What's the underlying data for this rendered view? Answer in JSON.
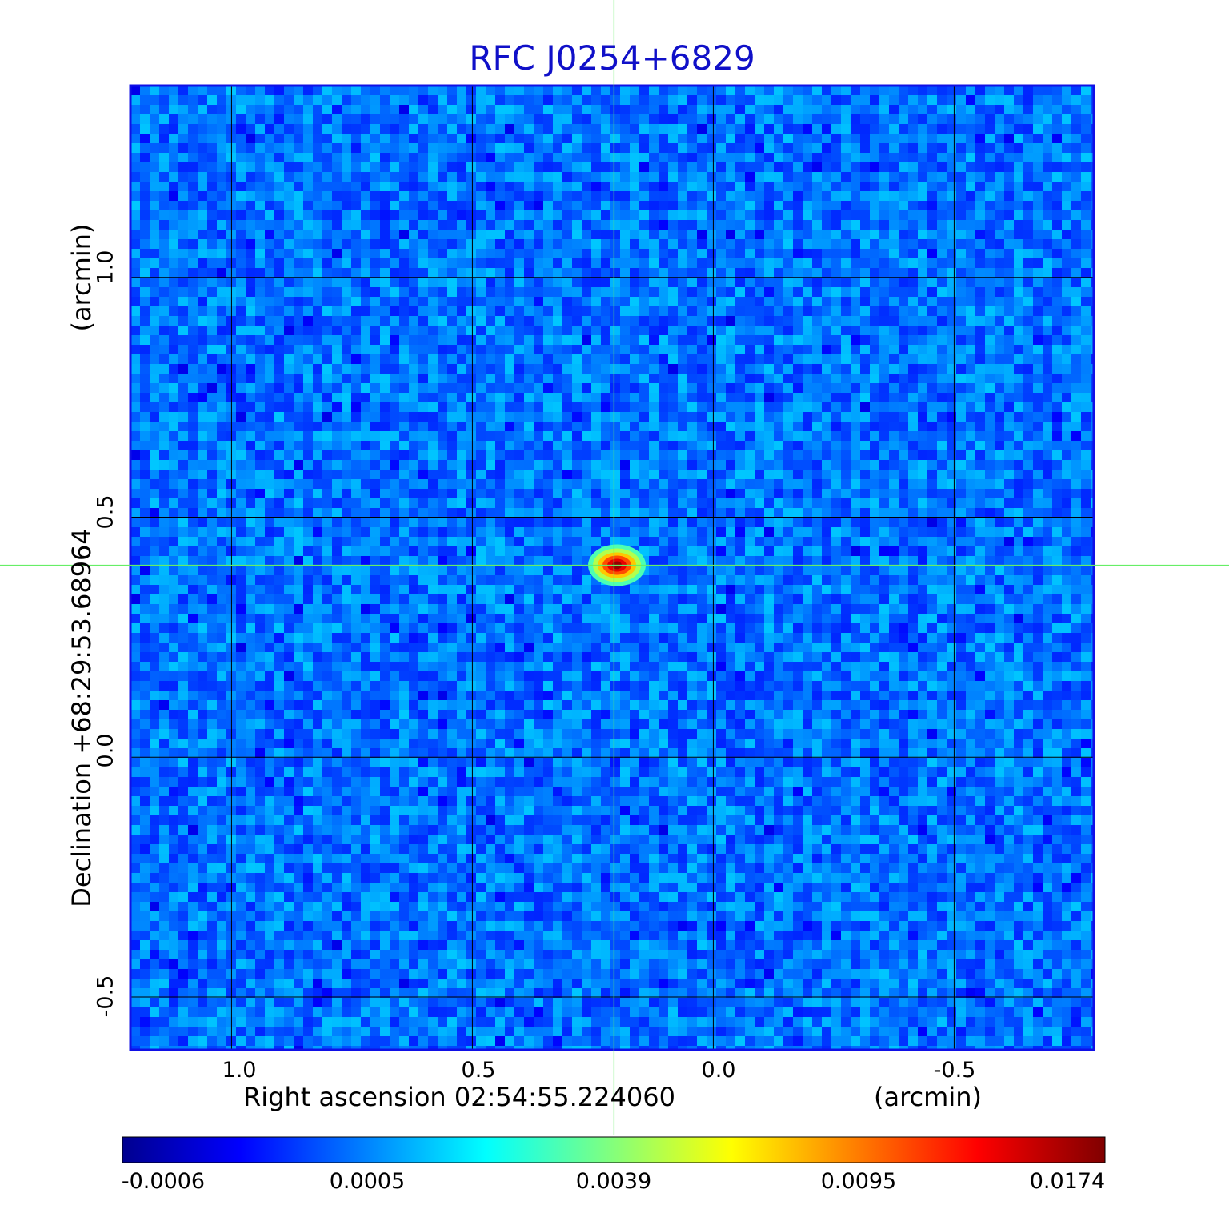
{
  "chart_data": {
    "type": "heatmap",
    "title": "RFC J0254+6829",
    "xlabel": "Right ascension  02:54:55.224060",
    "xunit": "(arcmin)",
    "ylabel": "Declination  +68:29:53.68964",
    "yunit": "(arcmin)",
    "x_ticks": [
      "1.0",
      "0.5",
      "0.0",
      "-0.5"
    ],
    "x_tick_values": [
      1.0,
      0.5,
      0.0,
      -0.5
    ],
    "y_ticks": [
      "1.0",
      "0.5",
      "0.0",
      "-0.5"
    ],
    "y_tick_values": [
      1.0,
      0.5,
      0.0,
      -0.5
    ],
    "xlim": [
      1.21,
      -0.79
    ],
    "ylim": [
      -0.61,
      1.4
    ],
    "grid": true,
    "x_reversed": true,
    "source": {
      "x": 0.2,
      "y": 0.4,
      "peak": 0.0174
    },
    "crosshair": {
      "x": 0.206,
      "y": 0.4,
      "color": "#66ee66"
    },
    "background_level": 0.0002,
    "colormap": "jet",
    "colorbar": {
      "ticks": [
        "-0.0006",
        "0.0005",
        "0.0039",
        "0.0095",
        "0.0174"
      ],
      "min": -0.0006,
      "max": 0.0174
    },
    "frame_color": "#1010e6"
  }
}
